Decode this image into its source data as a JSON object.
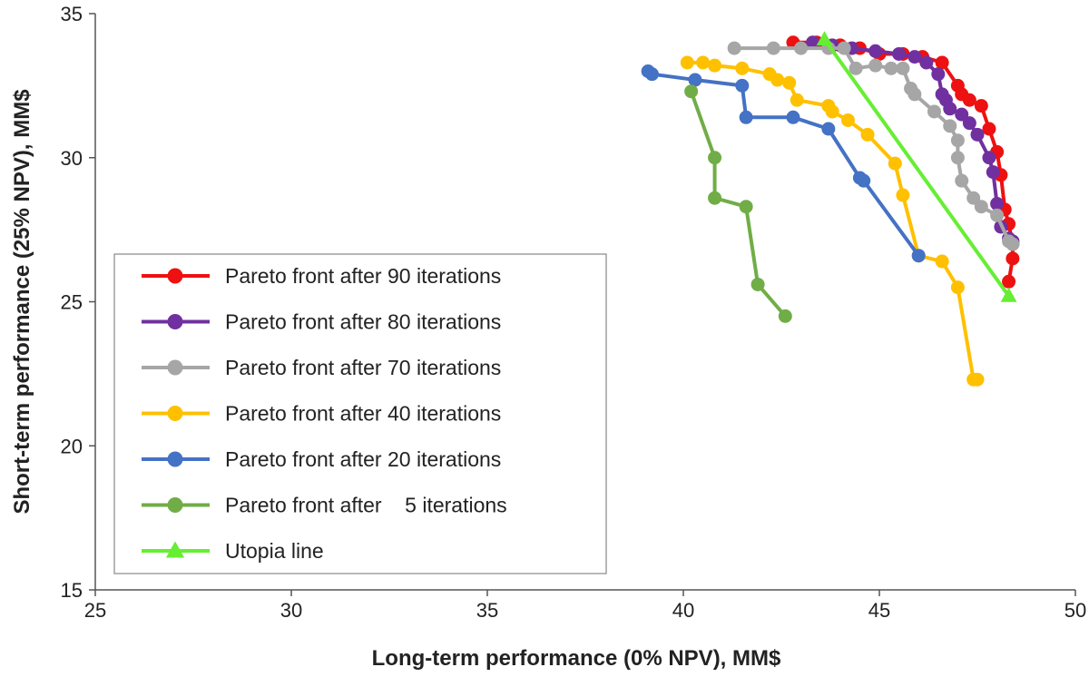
{
  "chart_data": {
    "type": "line",
    "xlabel": "Long-term performance (0% NPV), MM$",
    "ylabel": "Short-term performance (25% NPV), MM$",
    "xlim": [
      25,
      50
    ],
    "ylim": [
      15,
      35
    ],
    "xticks": [
      25,
      30,
      35,
      40,
      45,
      50
    ],
    "yticks": [
      15,
      20,
      25,
      30,
      35
    ],
    "grid": false,
    "legend_position": "left",
    "series": [
      {
        "name": "Pareto front after 90 iterations",
        "color": "#ee1111",
        "marker": "circle",
        "x": [
          42.8,
          43.4,
          44.0,
          44.5,
          45.0,
          45.6,
          46.1,
          46.6,
          47.0,
          47.1,
          47.3,
          47.6,
          47.8,
          48.0,
          48.1,
          48.2,
          48.3,
          48.4,
          48.4,
          48.3
        ],
        "y": [
          34.0,
          34.0,
          33.9,
          33.8,
          33.6,
          33.6,
          33.5,
          33.3,
          32.5,
          32.2,
          32.0,
          31.8,
          31.0,
          30.2,
          29.4,
          28.2,
          27.7,
          27.0,
          26.5,
          25.7
        ]
      },
      {
        "name": "Pareto front after 80 iterations",
        "color": "#7030a0",
        "marker": "circle",
        "x": [
          43.3,
          43.8,
          44.3,
          44.9,
          45.5,
          45.9,
          46.2,
          46.5,
          46.6,
          46.7,
          46.8,
          47.1,
          47.3,
          47.5,
          47.8,
          47.9,
          48.0,
          48.1,
          48.3,
          48.4
        ],
        "y": [
          34.0,
          33.9,
          33.8,
          33.7,
          33.6,
          33.5,
          33.3,
          32.9,
          32.2,
          32.0,
          31.7,
          31.5,
          31.2,
          30.8,
          30.0,
          29.5,
          28.4,
          27.6,
          27.2,
          27.1
        ]
      },
      {
        "name": "Pareto front after 70 iterations",
        "color": "#a6a6a6",
        "marker": "circle",
        "x": [
          41.3,
          42.3,
          43.0,
          43.7,
          44.1,
          44.4,
          44.9,
          45.3,
          45.6,
          45.8,
          45.9,
          46.4,
          46.8,
          47.0,
          47.0,
          47.1,
          47.4,
          47.6,
          48.0,
          48.3,
          48.4
        ],
        "y": [
          33.8,
          33.8,
          33.8,
          33.8,
          33.8,
          33.1,
          33.2,
          33.1,
          33.1,
          32.4,
          32.2,
          31.6,
          31.1,
          30.6,
          30.0,
          29.2,
          28.6,
          28.3,
          28.0,
          27.1,
          27.0
        ]
      },
      {
        "name": "Pareto front after 40 iterations",
        "color": "#ffc000",
        "marker": "circle",
        "x": [
          40.1,
          40.5,
          40.8,
          41.5,
          42.2,
          42.4,
          42.7,
          42.9,
          43.7,
          43.8,
          44.2,
          44.7,
          45.4,
          45.6,
          46.0,
          46.6,
          47.0,
          47.4,
          47.5
        ],
        "y": [
          33.3,
          33.3,
          33.2,
          33.1,
          32.9,
          32.7,
          32.6,
          32.0,
          31.8,
          31.6,
          31.3,
          30.8,
          29.8,
          28.7,
          26.6,
          26.4,
          25.5,
          22.3,
          22.3
        ]
      },
      {
        "name": "Pareto front after 20 iterations",
        "color": "#4472c4",
        "marker": "circle",
        "x": [
          39.1,
          39.2,
          40.3,
          41.5,
          41.6,
          42.8,
          43.7,
          44.5,
          44.6,
          46.0
        ],
        "y": [
          33.0,
          32.9,
          32.7,
          32.5,
          31.4,
          31.4,
          31.0,
          29.3,
          29.2,
          26.6
        ]
      },
      {
        "name": "Pareto front after    5 iterations",
        "color": "#70ad47",
        "marker": "circle",
        "x": [
          40.2,
          40.8,
          40.8,
          41.6,
          41.9,
          42.6
        ],
        "y": [
          32.3,
          30.0,
          28.6,
          28.3,
          25.6,
          24.5
        ]
      },
      {
        "name": "Utopia line",
        "color": "#66ee33",
        "marker": "triangle",
        "x": [
          43.6,
          48.3
        ],
        "y": [
          34.1,
          25.2
        ]
      }
    ]
  }
}
